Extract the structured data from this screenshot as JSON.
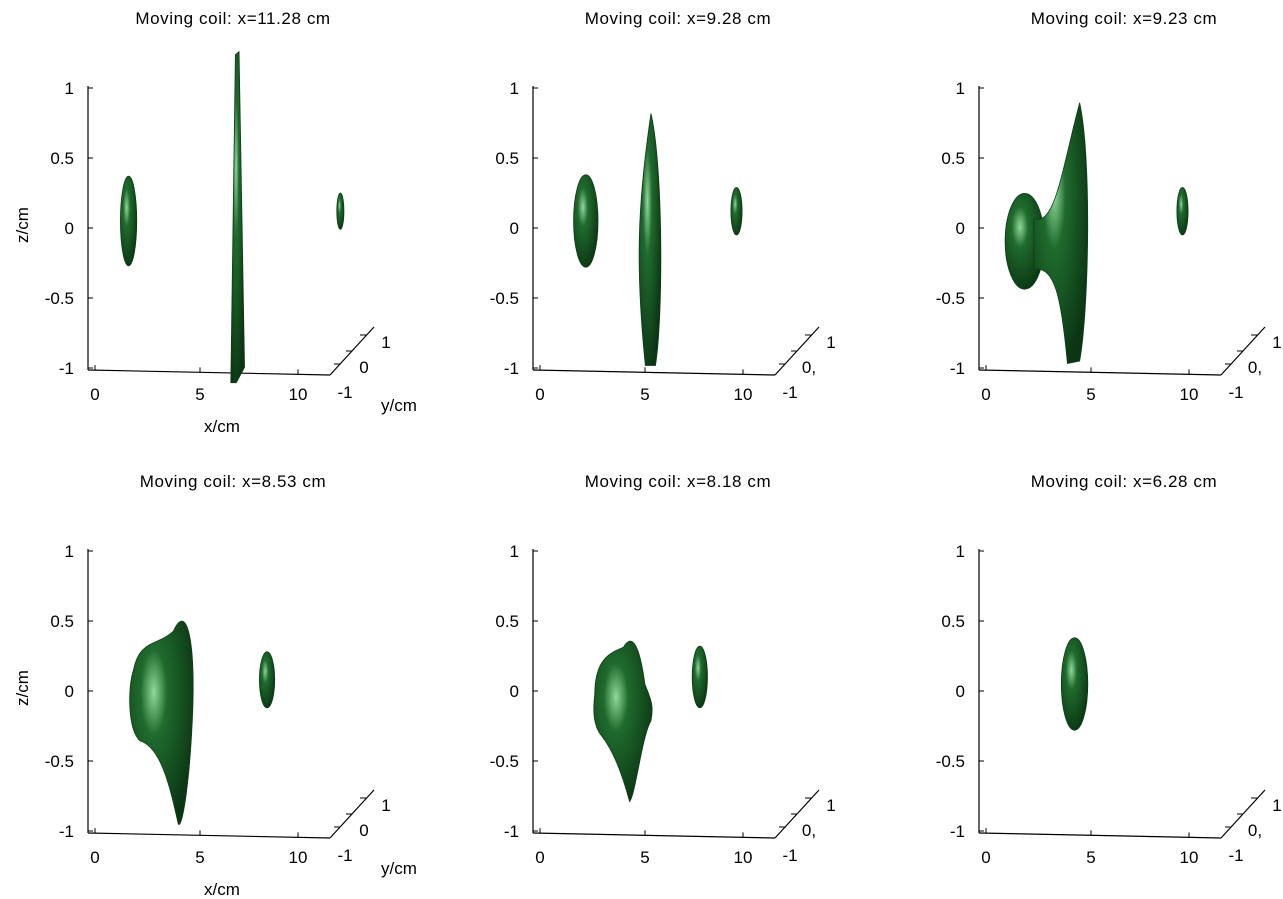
{
  "figure": {
    "surface_color": "#1f6b2d",
    "highlight_color": "#8fd99a",
    "shadow_color": "#0b3513",
    "axis_color": "#000000",
    "background": "#ffffff"
  },
  "chart_data": [
    {
      "type": "isosurface-3d",
      "title": "Moving coil: x=11.28 cm",
      "xlabel": "x/cm",
      "ylabel": "y/cm",
      "zlabel": "z/cm",
      "xticks": [
        "0",
        "5",
        "10"
      ],
      "yticks": [
        "-1",
        "0",
        "1"
      ],
      "zticks": [
        "1",
        "0.5",
        "0",
        "-0.5",
        "-1"
      ],
      "xlim": [
        0,
        11
      ],
      "ylim": [
        -1,
        1
      ],
      "zlim": [
        -1,
        1
      ],
      "blobs": [
        {
          "x": 1.6,
          "z": 0.05,
          "half_width": 0.8,
          "half_height": 0.32,
          "shape": "ellipsoid"
        },
        {
          "x": 6.8,
          "z": 0.05,
          "half_width": 0.9,
          "half_height": 1.1,
          "shape": "sheet"
        },
        {
          "x": 12.0,
          "z": 0.12,
          "half_width": 0.35,
          "half_height": 0.13,
          "shape": "ellipsoid"
        }
      ]
    },
    {
      "type": "isosurface-3d",
      "title": "Moving coil: x=9.28 cm",
      "xlabel": "",
      "ylabel": "",
      "zlabel": "",
      "xticks": [
        "0",
        "5",
        "10"
      ],
      "yticks": [
        "-1",
        "0,",
        "1"
      ],
      "zticks": [
        "1",
        "0.5",
        "0",
        "-0.5",
        "-1"
      ],
      "xlim": [
        0,
        11
      ],
      "ylim": [
        -1,
        1
      ],
      "zlim": [
        -1,
        1
      ],
      "blobs": [
        {
          "x": 2.2,
          "z": 0.05,
          "half_width": 1.2,
          "half_height": 0.33,
          "shape": "ellipsoid"
        },
        {
          "x": 5.4,
          "z": -0.1,
          "half_width": 1.1,
          "half_height": 0.9,
          "shape": "spindle"
        },
        {
          "x": 9.6,
          "z": 0.12,
          "half_width": 0.55,
          "half_height": 0.17,
          "shape": "ellipsoid"
        }
      ]
    },
    {
      "type": "isosurface-3d",
      "title": "Moving coil: x=9.23 cm",
      "xlabel": "",
      "ylabel": "",
      "zlabel": "",
      "xticks": [
        "0",
        "5",
        "10"
      ],
      "yticks": [
        "-1",
        "0,",
        "1"
      ],
      "zticks": [
        "1",
        "0.5",
        "0",
        "-0.5",
        "-1"
      ],
      "xlim": [
        0,
        11
      ],
      "ylim": [
        -1,
        1
      ],
      "zlim": [
        -1,
        1
      ],
      "blobs": [
        {
          "x": 3.5,
          "z": -0.05,
          "half_width": 3.0,
          "half_height": 0.9,
          "shape": "hourglass"
        },
        {
          "x": 9.6,
          "z": 0.12,
          "half_width": 0.55,
          "half_height": 0.17,
          "shape": "ellipsoid"
        }
      ]
    },
    {
      "type": "isosurface-3d",
      "title": "Moving coil: x=8.53 cm",
      "xlabel": "x/cm",
      "ylabel": "y/cm",
      "zlabel": "z/cm",
      "xticks": [
        "0",
        "5",
        "10"
      ],
      "yticks": [
        "-1",
        "0",
        "1"
      ],
      "zticks": [
        "1",
        "0.5",
        "0",
        "-0.5",
        "-1"
      ],
      "xlim": [
        0,
        11
      ],
      "ylim": [
        -1,
        1
      ],
      "zlim": [
        -1,
        1
      ],
      "blobs": [
        {
          "x": 3.5,
          "z": -0.1,
          "half_width": 3.0,
          "half_height": 0.85,
          "shape": "pear"
        },
        {
          "x": 8.4,
          "z": 0.08,
          "half_width": 0.75,
          "half_height": 0.2,
          "shape": "ellipsoid"
        }
      ]
    },
    {
      "type": "isosurface-3d",
      "title": "Moving coil: x=8.18 cm",
      "xlabel": "",
      "ylabel": "",
      "zlabel": "",
      "xticks": [
        "0",
        "5",
        "10"
      ],
      "yticks": [
        "-1",
        "0,",
        "1"
      ],
      "zticks": [
        "1",
        "0.5",
        "0",
        "-0.5",
        "-1"
      ],
      "xlim": [
        0,
        11
      ],
      "ylim": [
        -1,
        1
      ],
      "zlim": [
        -1,
        1
      ],
      "blobs": [
        {
          "x": 4.5,
          "z": -0.1,
          "half_width": 3.0,
          "half_height": 0.75,
          "shape": "pear-joined"
        },
        {
          "x": 7.8,
          "z": 0.1,
          "half_width": 0.75,
          "half_height": 0.22,
          "shape": "ellipsoid"
        }
      ]
    },
    {
      "type": "isosurface-3d",
      "title": "Moving coil: x=6.28 cm",
      "xlabel": "",
      "ylabel": "",
      "zlabel": "",
      "xticks": [
        "0",
        "5",
        "10"
      ],
      "yticks": [
        "-1",
        "0,",
        "1"
      ],
      "zticks": [
        "1",
        "0.5",
        "0",
        "-0.5",
        "-1"
      ],
      "xlim": [
        0,
        11
      ],
      "ylim": [
        -1,
        1
      ],
      "zlim": [
        -1,
        1
      ],
      "blobs": [
        {
          "x": 4.3,
          "z": 0.05,
          "half_width": 1.3,
          "half_height": 0.33,
          "shape": "ellipsoid"
        }
      ]
    }
  ]
}
